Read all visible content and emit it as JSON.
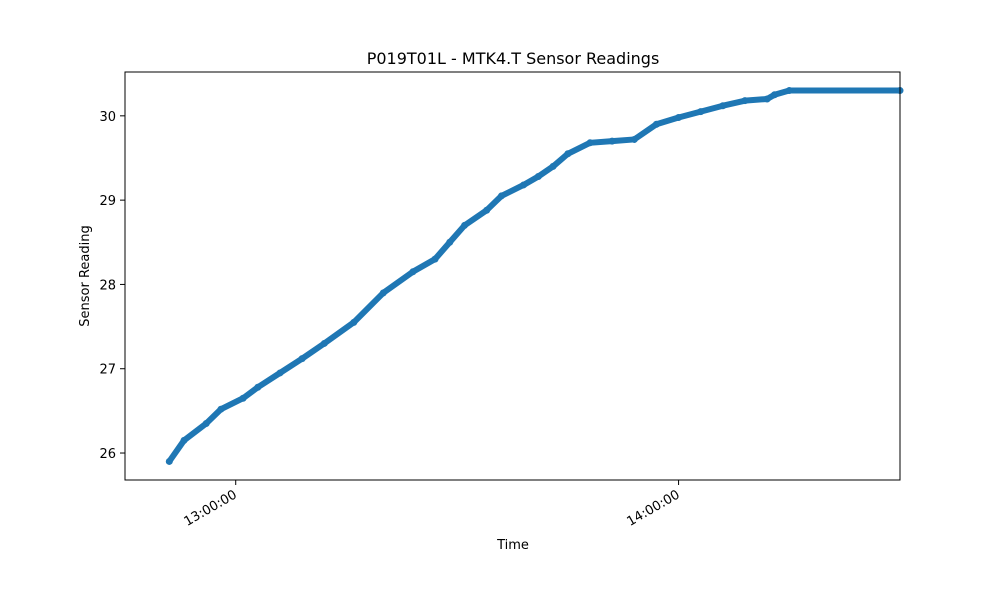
{
  "chart_data": {
    "type": "scatter",
    "title": "P019T01L - MTK4.T Sensor Readings",
    "xlabel": "Time",
    "ylabel": "Sensor Reading",
    "x_unit": "time of day",
    "xlim": [
      "12:45:00",
      "14:30:00"
    ],
    "ylim": [
      25.68,
      30.52
    ],
    "x_ticks": [
      "13:00:00",
      "14:00:00"
    ],
    "y_ticks": [
      26,
      27,
      28,
      29,
      30
    ],
    "grid": false,
    "legend": "none",
    "marker_color": "#1f77b4",
    "series": [
      {
        "x": [
          "12:51:00",
          "12:53:00",
          "12:56:00",
          "12:58:00",
          "13:01:00",
          "13:03:00",
          "13:06:00",
          "13:09:00",
          "13:12:00",
          "13:16:00",
          "13:20:00",
          "13:24:00",
          "13:27:00",
          "13:29:00",
          "13:31:00",
          "13:34:00",
          "13:36:00",
          "13:39:00",
          "13:41:00",
          "13:43:00",
          "13:45:00",
          "13:48:00",
          "13:51:00",
          "13:54:00",
          "13:57:00",
          "14:00:00",
          "14:03:00",
          "14:06:00",
          "14:09:00",
          "14:12:00",
          "14:13:00",
          "14:15:00",
          "14:30:00"
        ],
        "y": [
          25.9,
          26.15,
          26.35,
          26.52,
          26.65,
          26.78,
          26.95,
          27.12,
          27.3,
          27.55,
          27.9,
          28.15,
          28.3,
          28.5,
          28.7,
          28.88,
          29.05,
          29.18,
          29.28,
          29.4,
          29.55,
          29.68,
          29.7,
          29.72,
          29.9,
          29.98,
          30.05,
          30.12,
          30.18,
          30.2,
          30.25,
          30.3,
          30.3
        ]
      }
    ]
  }
}
